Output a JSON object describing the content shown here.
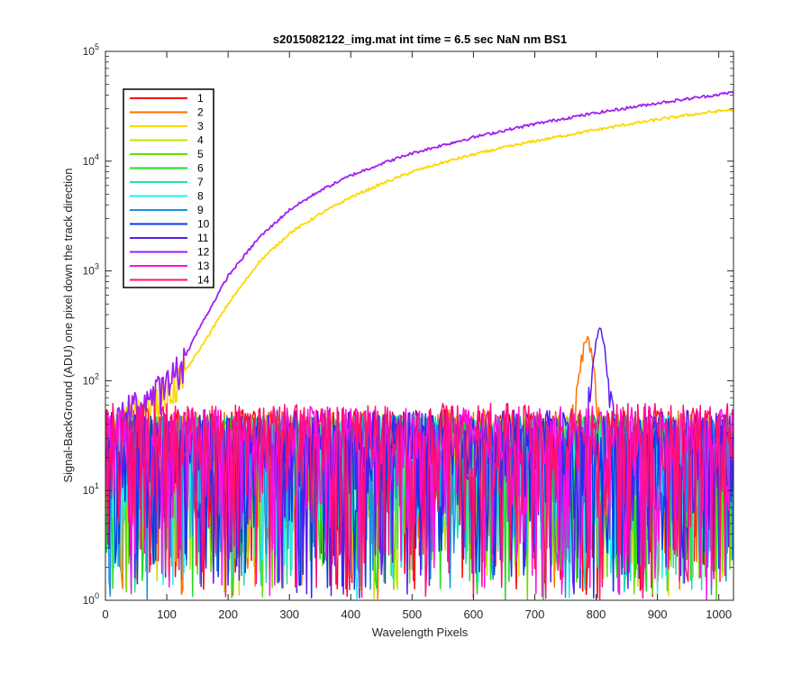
{
  "figure": {
    "background": "#ffffff"
  },
  "chart_data": {
    "type": "line",
    "title": "s2015082122_img.mat int time = 6.5 sec  NaN nm BS1",
    "xlabel": "Wavelength Pixels",
    "ylabel": "Signal-BackGround (ADU) one pixel down the track direction",
    "xlim": [
      0,
      1024
    ],
    "ylim": [
      1,
      100000
    ],
    "yscale": "log",
    "x_ticks": [
      0,
      100,
      200,
      300,
      400,
      500,
      600,
      700,
      800,
      900,
      1000
    ],
    "y_ticks": [
      {
        "value": 1,
        "mantissa": "10",
        "exponent": "0"
      },
      {
        "value": 10,
        "mantissa": "10",
        "exponent": "1"
      },
      {
        "value": 100,
        "mantissa": "10",
        "exponent": "2"
      },
      {
        "value": 1000,
        "mantissa": "10",
        "exponent": "3"
      },
      {
        "value": 10000,
        "mantissa": "10",
        "exponent": "4"
      },
      {
        "value": 100000,
        "mantissa": "10",
        "exponent": "5"
      }
    ],
    "grid": false,
    "legend_position": "top-left",
    "noise_note": "series 1–14 show pixel-to-pixel noise roughly between 2 and 90 ADU across the whole range; 2, 11 carry a peak near pixel 790–810",
    "series": [
      {
        "name": "1",
        "color": "#ff0000",
        "kind": "noise",
        "level": 28
      },
      {
        "name": "2",
        "color": "#ff7000",
        "kind": "noise_peak",
        "level": 28,
        "peak": {
          "x": 785,
          "y": 230
        }
      },
      {
        "name": "3",
        "color": "#ffd700",
        "kind": "signal",
        "x": [
          0,
          40,
          80,
          100,
          120,
          150,
          200,
          250,
          300,
          350,
          400,
          450,
          500,
          550,
          600,
          650,
          700,
          750,
          800,
          850,
          900,
          950,
          1000,
          1024
        ],
        "y": [
          30,
          45,
          60,
          75,
          100,
          180,
          500,
          1200,
          2200,
          3300,
          4700,
          6200,
          8000,
          9700,
          11500,
          13300,
          15200,
          17200,
          19300,
          21600,
          23900,
          26300,
          28600,
          29500
        ]
      },
      {
        "name": "4",
        "color": "#c8e000",
        "kind": "noise",
        "level": 25
      },
      {
        "name": "5",
        "color": "#66dd00",
        "kind": "noise",
        "level": 25
      },
      {
        "name": "6",
        "color": "#22dd22",
        "kind": "noise",
        "level": 25
      },
      {
        "name": "7",
        "color": "#22ddaa",
        "kind": "noise",
        "level": 25
      },
      {
        "name": "8",
        "color": "#22eeee",
        "kind": "noise",
        "level": 25
      },
      {
        "name": "9",
        "color": "#1a8fe0",
        "kind": "noise",
        "level": 25
      },
      {
        "name": "10",
        "color": "#0a3ae0",
        "kind": "noise",
        "level": 25
      },
      {
        "name": "11",
        "color": "#5a1af0",
        "kind": "noise_peak",
        "level": 28,
        "peak": {
          "x": 806,
          "y": 290
        }
      },
      {
        "name": "12",
        "color": "#a020f0",
        "kind": "signal",
        "x": [
          0,
          40,
          80,
          100,
          120,
          150,
          200,
          250,
          300,
          350,
          400,
          450,
          500,
          550,
          600,
          650,
          700,
          750,
          800,
          850,
          900,
          950,
          1000,
          1024
        ],
        "y": [
          30,
          55,
          75,
          90,
          130,
          280,
          900,
          2000,
          3600,
          5400,
          7400,
          9500,
          11800,
          14000,
          16500,
          19000,
          21800,
          24600,
          27500,
          30500,
          33800,
          37000,
          40500,
          42500
        ]
      },
      {
        "name": "13",
        "color": "#ff10e0",
        "kind": "noise",
        "level": 30
      },
      {
        "name": "14",
        "color": "#ff1070",
        "kind": "noise",
        "level": 32
      }
    ]
  }
}
